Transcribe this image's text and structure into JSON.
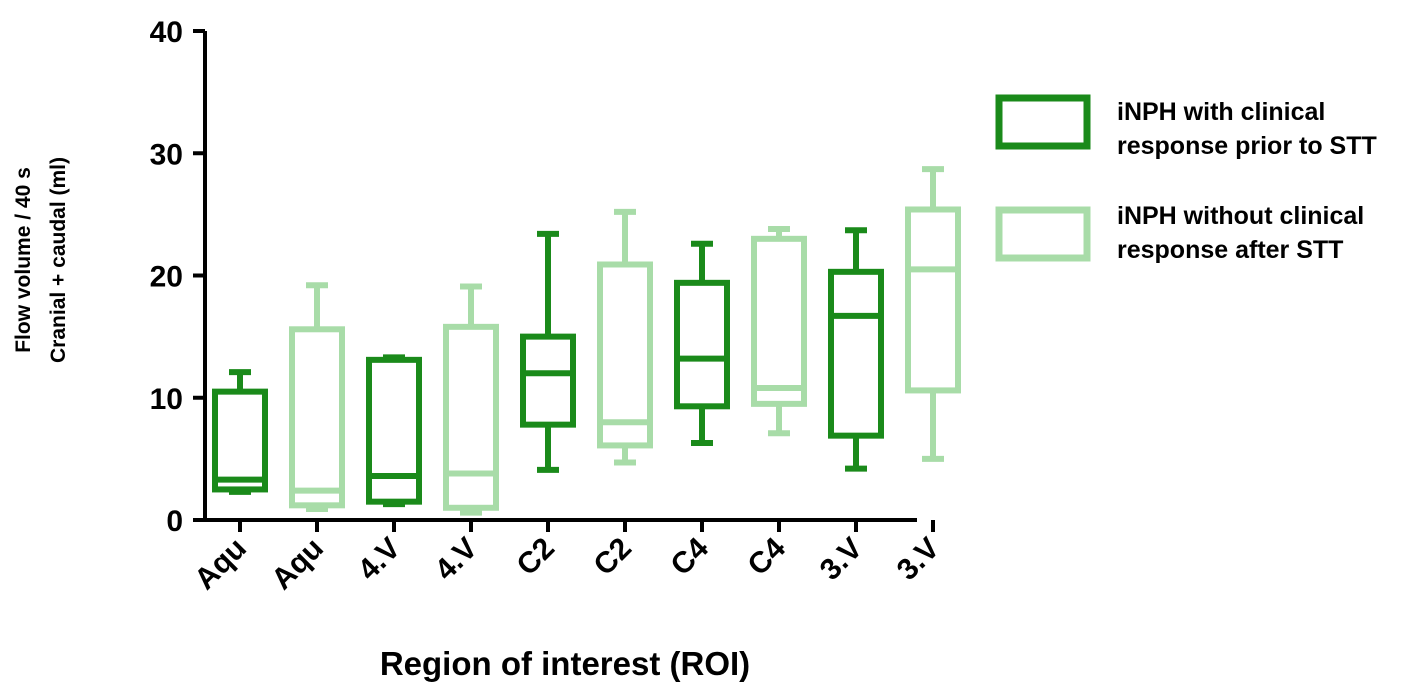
{
  "chart_data": {
    "type": "boxplot",
    "title": "",
    "ylabel_line1": "Flow volume / 40 s",
    "ylabel_line2": "Cranial + caudal (ml)",
    "xlabel": "Region of interest (ROI)",
    "ylim": [
      0,
      40
    ],
    "yticks": [
      0,
      10,
      20,
      30,
      40
    ],
    "grid": false,
    "legend_position": "right",
    "categories": [
      "Aqu",
      "Aqu",
      "4.V",
      "4.V",
      "C2",
      "C2",
      "C4",
      "C4",
      "3.V",
      "3.V"
    ],
    "series": [
      {
        "name_line1": "iNPH with clinical",
        "name_line2": "response prior to STT",
        "color": "#1a8a1a",
        "boxes": [
          {
            "category": "Aqu",
            "min": 2.3,
            "q1": 2.5,
            "median": 3.3,
            "q3": 10.5,
            "max": 12.1
          },
          {
            "category": "4.V",
            "min": 1.3,
            "q1": 1.5,
            "median": 3.6,
            "q3": 13.1,
            "max": 13.3
          },
          {
            "category": "C2",
            "min": 4.1,
            "q1": 7.8,
            "median": 12.0,
            "q3": 15.0,
            "max": 23.4
          },
          {
            "category": "C4",
            "min": 6.3,
            "q1": 9.3,
            "median": 13.2,
            "q3": 19.4,
            "max": 22.6
          },
          {
            "category": "3.V",
            "min": 4.2,
            "q1": 6.9,
            "median": 16.7,
            "q3": 20.3,
            "max": 23.7
          }
        ]
      },
      {
        "name_line1": "iNPH without clinical",
        "name_line2": "response after STT",
        "color": "#a8dca8",
        "boxes": [
          {
            "category": "Aqu",
            "min": 0.9,
            "q1": 1.2,
            "median": 2.4,
            "q3": 15.6,
            "max": 19.2
          },
          {
            "category": "4.V",
            "min": 0.6,
            "q1": 1.0,
            "median": 3.8,
            "q3": 15.8,
            "max": 19.1
          },
          {
            "category": "C2",
            "min": 4.7,
            "q1": 6.1,
            "median": 8.0,
            "q3": 20.9,
            "max": 25.2
          },
          {
            "category": "C4",
            "min": 7.1,
            "q1": 9.5,
            "median": 10.8,
            "q3": 23.0,
            "max": 23.8
          },
          {
            "category": "3.V",
            "min": 5.0,
            "q1": 10.6,
            "median": 20.5,
            "q3": 25.4,
            "max": 28.7
          }
        ]
      }
    ]
  }
}
